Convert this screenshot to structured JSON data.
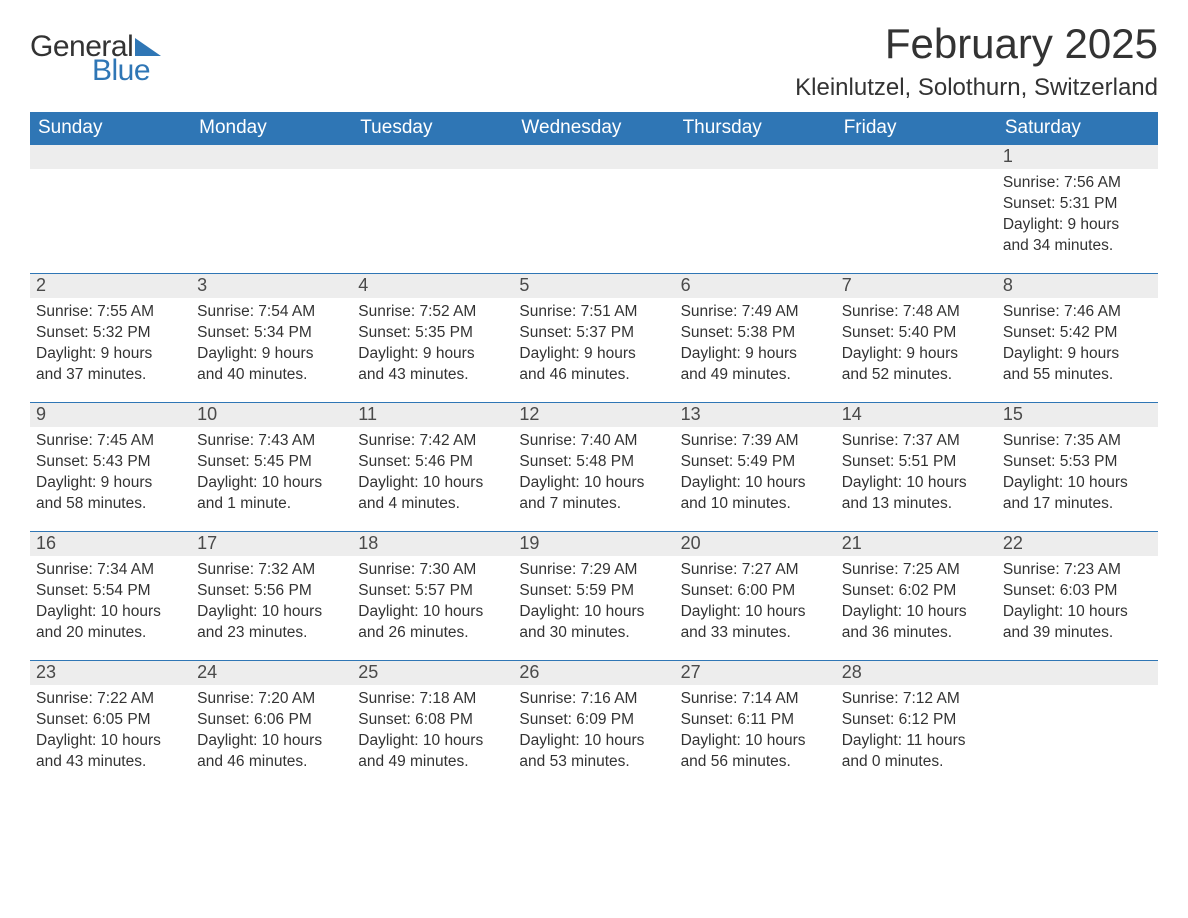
{
  "brand": {
    "word1": "General",
    "word2": "Blue",
    "accent": "#2f76b5"
  },
  "title": "February 2025",
  "location": "Kleinlutzel, Solothurn, Switzerland",
  "weekdays": [
    "Sunday",
    "Monday",
    "Tuesday",
    "Wednesday",
    "Thursday",
    "Friday",
    "Saturday"
  ],
  "colors": {
    "header_bg": "#2f76b5",
    "header_text": "#ffffff",
    "band_bg": "#ededed",
    "body_text": "#333333",
    "rule": "#2f76b5",
    "page_bg": "#ffffff"
  },
  "fonts": {
    "title_size_pt": 32,
    "location_size_pt": 18,
    "weekday_size_pt": 14,
    "body_size_pt": 12
  },
  "layout": {
    "columns": 7,
    "rows": 5,
    "start_weekday_index": 6
  },
  "weeks": [
    [
      null,
      null,
      null,
      null,
      null,
      null,
      {
        "n": "1",
        "sunrise": "Sunrise: 7:56 AM",
        "sunset": "Sunset: 5:31 PM",
        "dl1": "Daylight: 9 hours",
        "dl2": "and 34 minutes."
      }
    ],
    [
      {
        "n": "2",
        "sunrise": "Sunrise: 7:55 AM",
        "sunset": "Sunset: 5:32 PM",
        "dl1": "Daylight: 9 hours",
        "dl2": "and 37 minutes."
      },
      {
        "n": "3",
        "sunrise": "Sunrise: 7:54 AM",
        "sunset": "Sunset: 5:34 PM",
        "dl1": "Daylight: 9 hours",
        "dl2": "and 40 minutes."
      },
      {
        "n": "4",
        "sunrise": "Sunrise: 7:52 AM",
        "sunset": "Sunset: 5:35 PM",
        "dl1": "Daylight: 9 hours",
        "dl2": "and 43 minutes."
      },
      {
        "n": "5",
        "sunrise": "Sunrise: 7:51 AM",
        "sunset": "Sunset: 5:37 PM",
        "dl1": "Daylight: 9 hours",
        "dl2": "and 46 minutes."
      },
      {
        "n": "6",
        "sunrise": "Sunrise: 7:49 AM",
        "sunset": "Sunset: 5:38 PM",
        "dl1": "Daylight: 9 hours",
        "dl2": "and 49 minutes."
      },
      {
        "n": "7",
        "sunrise": "Sunrise: 7:48 AM",
        "sunset": "Sunset: 5:40 PM",
        "dl1": "Daylight: 9 hours",
        "dl2": "and 52 minutes."
      },
      {
        "n": "8",
        "sunrise": "Sunrise: 7:46 AM",
        "sunset": "Sunset: 5:42 PM",
        "dl1": "Daylight: 9 hours",
        "dl2": "and 55 minutes."
      }
    ],
    [
      {
        "n": "9",
        "sunrise": "Sunrise: 7:45 AM",
        "sunset": "Sunset: 5:43 PM",
        "dl1": "Daylight: 9 hours",
        "dl2": "and 58 minutes."
      },
      {
        "n": "10",
        "sunrise": "Sunrise: 7:43 AM",
        "sunset": "Sunset: 5:45 PM",
        "dl1": "Daylight: 10 hours",
        "dl2": "and 1 minute."
      },
      {
        "n": "11",
        "sunrise": "Sunrise: 7:42 AM",
        "sunset": "Sunset: 5:46 PM",
        "dl1": "Daylight: 10 hours",
        "dl2": "and 4 minutes."
      },
      {
        "n": "12",
        "sunrise": "Sunrise: 7:40 AM",
        "sunset": "Sunset: 5:48 PM",
        "dl1": "Daylight: 10 hours",
        "dl2": "and 7 minutes."
      },
      {
        "n": "13",
        "sunrise": "Sunrise: 7:39 AM",
        "sunset": "Sunset: 5:49 PM",
        "dl1": "Daylight: 10 hours",
        "dl2": "and 10 minutes."
      },
      {
        "n": "14",
        "sunrise": "Sunrise: 7:37 AM",
        "sunset": "Sunset: 5:51 PM",
        "dl1": "Daylight: 10 hours",
        "dl2": "and 13 minutes."
      },
      {
        "n": "15",
        "sunrise": "Sunrise: 7:35 AM",
        "sunset": "Sunset: 5:53 PM",
        "dl1": "Daylight: 10 hours",
        "dl2": "and 17 minutes."
      }
    ],
    [
      {
        "n": "16",
        "sunrise": "Sunrise: 7:34 AM",
        "sunset": "Sunset: 5:54 PM",
        "dl1": "Daylight: 10 hours",
        "dl2": "and 20 minutes."
      },
      {
        "n": "17",
        "sunrise": "Sunrise: 7:32 AM",
        "sunset": "Sunset: 5:56 PM",
        "dl1": "Daylight: 10 hours",
        "dl2": "and 23 minutes."
      },
      {
        "n": "18",
        "sunrise": "Sunrise: 7:30 AM",
        "sunset": "Sunset: 5:57 PM",
        "dl1": "Daylight: 10 hours",
        "dl2": "and 26 minutes."
      },
      {
        "n": "19",
        "sunrise": "Sunrise: 7:29 AM",
        "sunset": "Sunset: 5:59 PM",
        "dl1": "Daylight: 10 hours",
        "dl2": "and 30 minutes."
      },
      {
        "n": "20",
        "sunrise": "Sunrise: 7:27 AM",
        "sunset": "Sunset: 6:00 PM",
        "dl1": "Daylight: 10 hours",
        "dl2": "and 33 minutes."
      },
      {
        "n": "21",
        "sunrise": "Sunrise: 7:25 AM",
        "sunset": "Sunset: 6:02 PM",
        "dl1": "Daylight: 10 hours",
        "dl2": "and 36 minutes."
      },
      {
        "n": "22",
        "sunrise": "Sunrise: 7:23 AM",
        "sunset": "Sunset: 6:03 PM",
        "dl1": "Daylight: 10 hours",
        "dl2": "and 39 minutes."
      }
    ],
    [
      {
        "n": "23",
        "sunrise": "Sunrise: 7:22 AM",
        "sunset": "Sunset: 6:05 PM",
        "dl1": "Daylight: 10 hours",
        "dl2": "and 43 minutes."
      },
      {
        "n": "24",
        "sunrise": "Sunrise: 7:20 AM",
        "sunset": "Sunset: 6:06 PM",
        "dl1": "Daylight: 10 hours",
        "dl2": "and 46 minutes."
      },
      {
        "n": "25",
        "sunrise": "Sunrise: 7:18 AM",
        "sunset": "Sunset: 6:08 PM",
        "dl1": "Daylight: 10 hours",
        "dl2": "and 49 minutes."
      },
      {
        "n": "26",
        "sunrise": "Sunrise: 7:16 AM",
        "sunset": "Sunset: 6:09 PM",
        "dl1": "Daylight: 10 hours",
        "dl2": "and 53 minutes."
      },
      {
        "n": "27",
        "sunrise": "Sunrise: 7:14 AM",
        "sunset": "Sunset: 6:11 PM",
        "dl1": "Daylight: 10 hours",
        "dl2": "and 56 minutes."
      },
      {
        "n": "28",
        "sunrise": "Sunrise: 7:12 AM",
        "sunset": "Sunset: 6:12 PM",
        "dl1": "Daylight: 11 hours",
        "dl2": "and 0 minutes."
      },
      null
    ]
  ]
}
